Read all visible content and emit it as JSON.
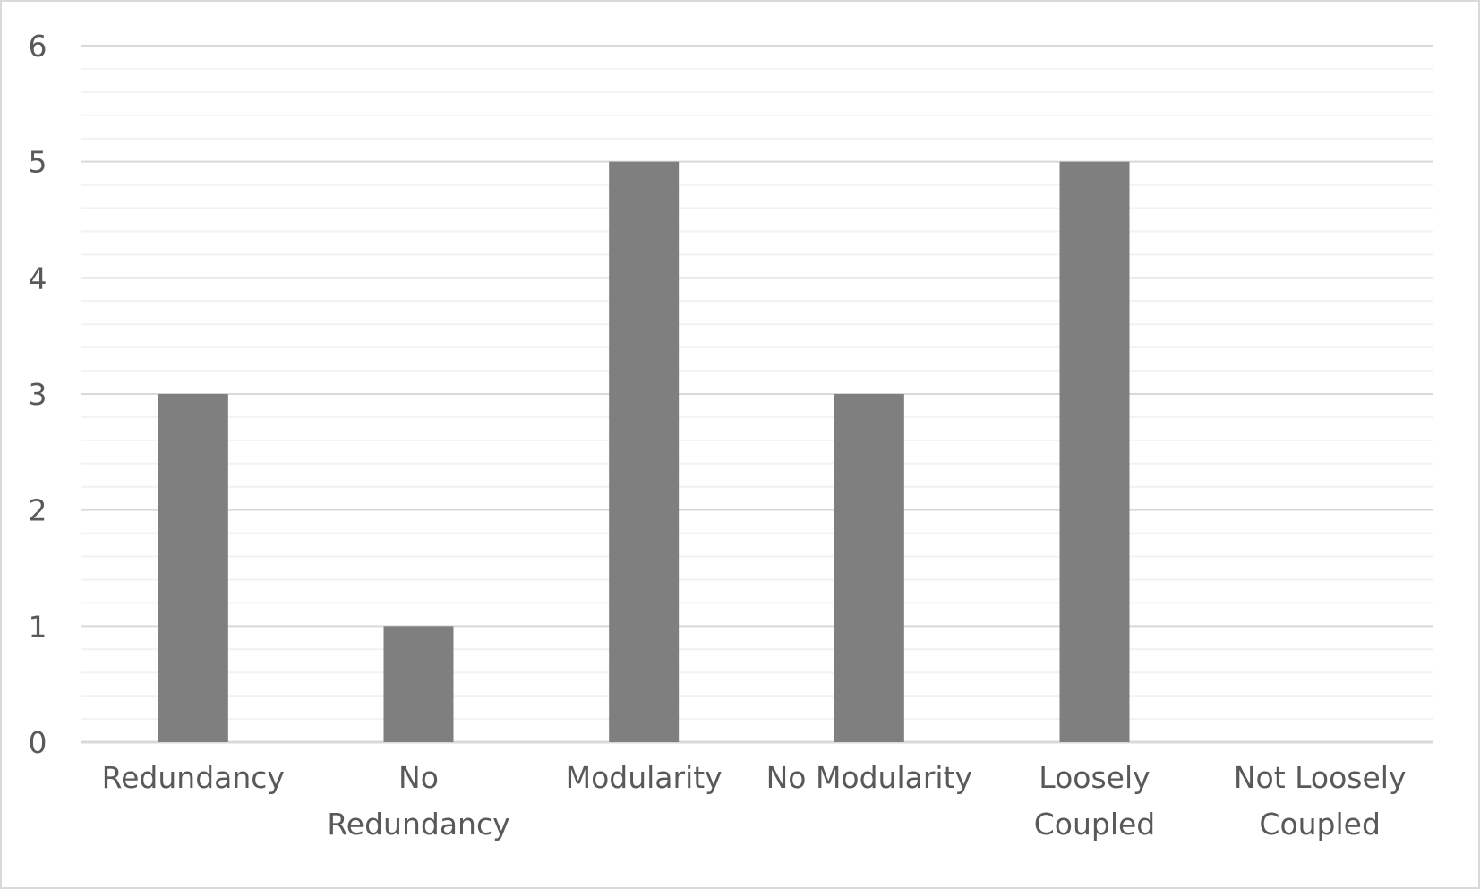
{
  "chart_data": {
    "type": "bar",
    "title": "",
    "xlabel": "",
    "ylabel": "",
    "categories": [
      [
        "Redundancy"
      ],
      [
        "No",
        "Redundancy"
      ],
      [
        "Modularity"
      ],
      [
        "No Modularity"
      ],
      [
        "Loosely",
        "Coupled"
      ],
      [
        "Not Loosely",
        "Coupled"
      ]
    ],
    "values": [
      3,
      1,
      5,
      3,
      5,
      0
    ],
    "ylim": [
      0,
      6
    ],
    "yticks": [
      "0",
      "1",
      "2",
      "3",
      "4",
      "5",
      "6"
    ],
    "minor_grid_step": 0.2,
    "grid": true,
    "legend": "none",
    "colors": {
      "bar": "#7f7f7f",
      "major_grid": "#d9d9d9",
      "minor_grid": "#f2f2f2",
      "axis": "#d9d9d9",
      "text": "#595959"
    }
  }
}
